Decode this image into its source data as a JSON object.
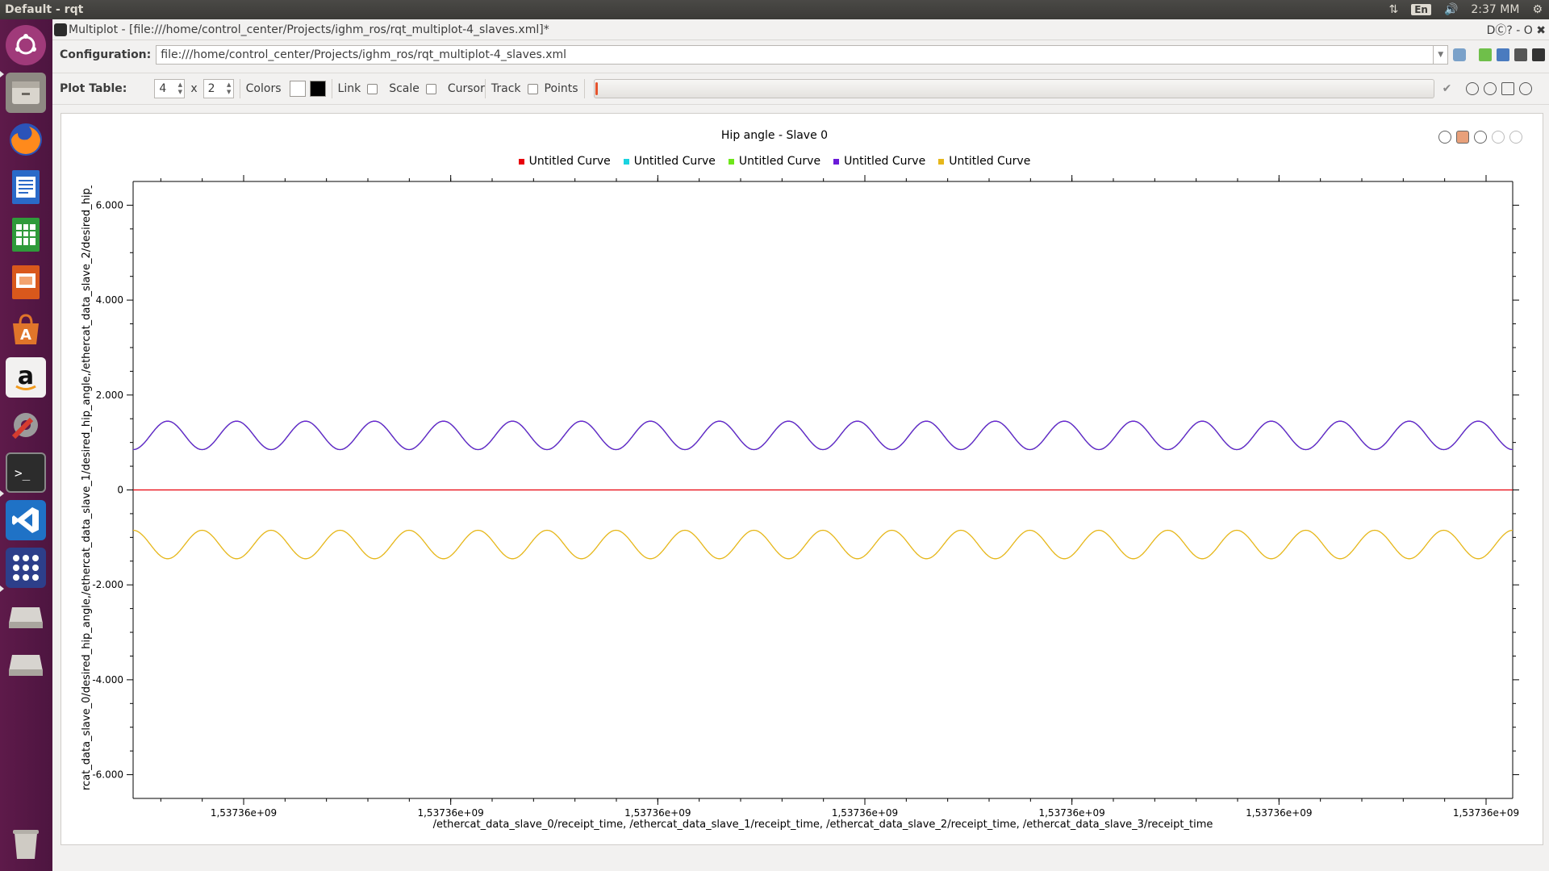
{
  "top_panel": {
    "title": "Default - rqt",
    "lang": "En",
    "time": "2:37 MM"
  },
  "window": {
    "title": "Multiplot - [file:///home/control_center/Projects/ighm_ros/rqt_multiplot-4_slaves.xml]*",
    "controls": "DⒸ? - O ✖"
  },
  "config": {
    "label": "Configuration:",
    "value": "file:///home/control_center/Projects/ighm_ros/rqt_multiplot-4_slaves.xml"
  },
  "plot_table": {
    "label": "Plot Table:",
    "rows": "4",
    "times": "x",
    "cols": "2",
    "colors_label": "Colors",
    "link_label": "Link",
    "scale_label": "Scale",
    "cursor_label": "Cursor",
    "track_label": "Track",
    "points_label": "Points"
  },
  "chart_data": {
    "type": "line",
    "title": "Hip angle - Slave 0",
    "xlabel": "/ethercat_data_slave_0/receipt_time, /ethercat_data_slave_1/receipt_time, /ethercat_data_slave_2/receipt_time, /ethercat_data_slave_3/receipt_time",
    "ylabel": "rcat_data_slave_0/desired_hip_angle,/ethercat_data_slave_1/desired_hip_angle,/ethercat_data_slave_2/desired_hip_angle,/e",
    "ylim": [
      -6.5,
      6.5
    ],
    "y_ticks": [
      6,
      4,
      2,
      0,
      -2,
      -4,
      -6
    ],
    "y_tick_labels": [
      "6.000",
      "4.000",
      "2.000",
      "0",
      "-2.000",
      "-4.000",
      "-6.000"
    ],
    "x_tick_labels": [
      "1,53736e+09",
      "1,53736e+09",
      "1,53736e+09",
      "1,53736e+09",
      "1,53736e+09",
      "1,53736e+09",
      "1,53736e+09"
    ],
    "grid": false,
    "legend_position": "top",
    "series": [
      {
        "name": "Untitled Curve",
        "color": "#e8000b",
        "shape": "constant",
        "offset": 0,
        "amplitude": 0,
        "periods": 20
      },
      {
        "name": "Untitled Curve",
        "color": "#1ad3e0",
        "shape": "sine",
        "offset": 1.15,
        "amplitude": 0.3,
        "periods": 20
      },
      {
        "name": "Untitled Curve",
        "color": "#6ee61a",
        "shape": "sine",
        "offset": 1.15,
        "amplitude": 0.3,
        "periods": 20
      },
      {
        "name": "Untitled Curve",
        "color": "#6a1ad8",
        "shape": "sine",
        "offset": 1.15,
        "amplitude": 0.3,
        "periods": 20
      },
      {
        "name": "Untitled Curve",
        "color": "#e6b71a",
        "shape": "sine",
        "offset": -1.15,
        "amplitude": 0.3,
        "periods": 20
      }
    ]
  },
  "colors": {
    "launcher_bg": "#5e1a4a",
    "red_curve": "#e8000b",
    "purple_curve": "#6a1ad8",
    "yellow_curve": "#e6b71a"
  },
  "launcher_icons": [
    "ubuntu-icon",
    "files-icon",
    "firefox-icon",
    "writer-icon",
    "calc-icon",
    "impress-icon",
    "software-icon",
    "amazon-icon",
    "settings-icon",
    "terminal-icon",
    "vscode-icon",
    "apps-icon",
    "drive-icon",
    "drive-icon",
    "trash-icon"
  ]
}
